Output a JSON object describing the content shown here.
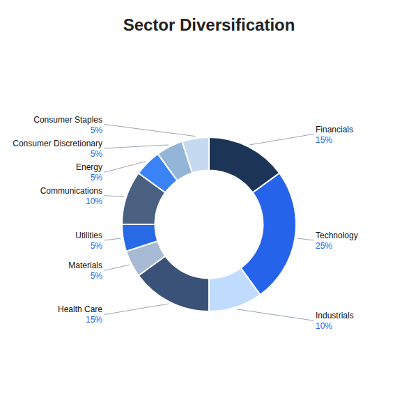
{
  "chart_data": {
    "type": "pie",
    "title": "Sector Diversification",
    "categories": [
      "Financials",
      "Technology",
      "Industrials",
      "Health Care",
      "Materials",
      "Utilities",
      "Communications",
      "Energy",
      "Consumer Discretionary",
      "Consumer Staples"
    ],
    "values": [
      15,
      25,
      10,
      15,
      5,
      5,
      10,
      5,
      5,
      5
    ],
    "value_labels": [
      "15%",
      "25%",
      "10%",
      "15%",
      "5%",
      "5%",
      "10%",
      "5%",
      "5%",
      "5%"
    ],
    "colors": [
      "#1c3557",
      "#2563eb",
      "#bfdbfe",
      "#3b5278",
      "#a8bbd4",
      "#2869e6",
      "#4a6080",
      "#3b82f6",
      "#93b5d8",
      "#c5daf0"
    ],
    "data_labels": true
  }
}
